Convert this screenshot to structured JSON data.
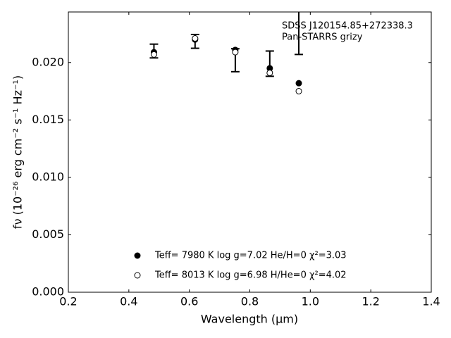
{
  "chart_data": {
    "type": "scatter",
    "annotations": [
      "SDSS J120154.85+272338.3",
      "Pan-STARRS grizy"
    ],
    "x_label": "Wavelength (μm)",
    "y_label": "fν (10⁻²⁶ erg cm⁻² s⁻¹ Hz⁻¹)",
    "x": [
      0.483,
      0.619,
      0.752,
      0.866,
      0.962
    ],
    "observed": {
      "color": "#000000",
      "values": [
        0.021,
        0.02184,
        0.0202,
        0.0199,
        0.0238
      ],
      "errors": [
        0.0006,
        0.0006,
        0.001,
        0.0011,
        0.0031
      ]
    },
    "series": [
      {
        "name": "Teff=  7980 K  log g=7.02  He/H=0  χ²=3.03",
        "color": "#000000",
        "marker": "filled",
        "values": [
          0.0209,
          0.022,
          0.0211,
          0.0195,
          0.0182
        ]
      },
      {
        "name": "Teff=  8013 K  log g=6.98  H/He=0  χ²=4.02",
        "color": "#000000",
        "marker": "open",
        "values": [
          0.0207,
          0.0221,
          0.0209,
          0.0191,
          0.0175
        ]
      }
    ],
    "xlim": [
      0.2,
      1.4
    ],
    "xticks": [
      0.2,
      0.4,
      0.6,
      0.8,
      {
        "value": 1,
        "label": "1.0"
      },
      1.2,
      1.4
    ],
    "ylim": [
      0,
      0.0244
    ],
    "yticks": [
      {
        "value": 0,
        "label": "0.000"
      },
      0.005,
      {
        "value": 0.01,
        "label": "0.010"
      },
      0.015,
      {
        "value": 0.02,
        "label": "0.020"
      }
    ]
  }
}
